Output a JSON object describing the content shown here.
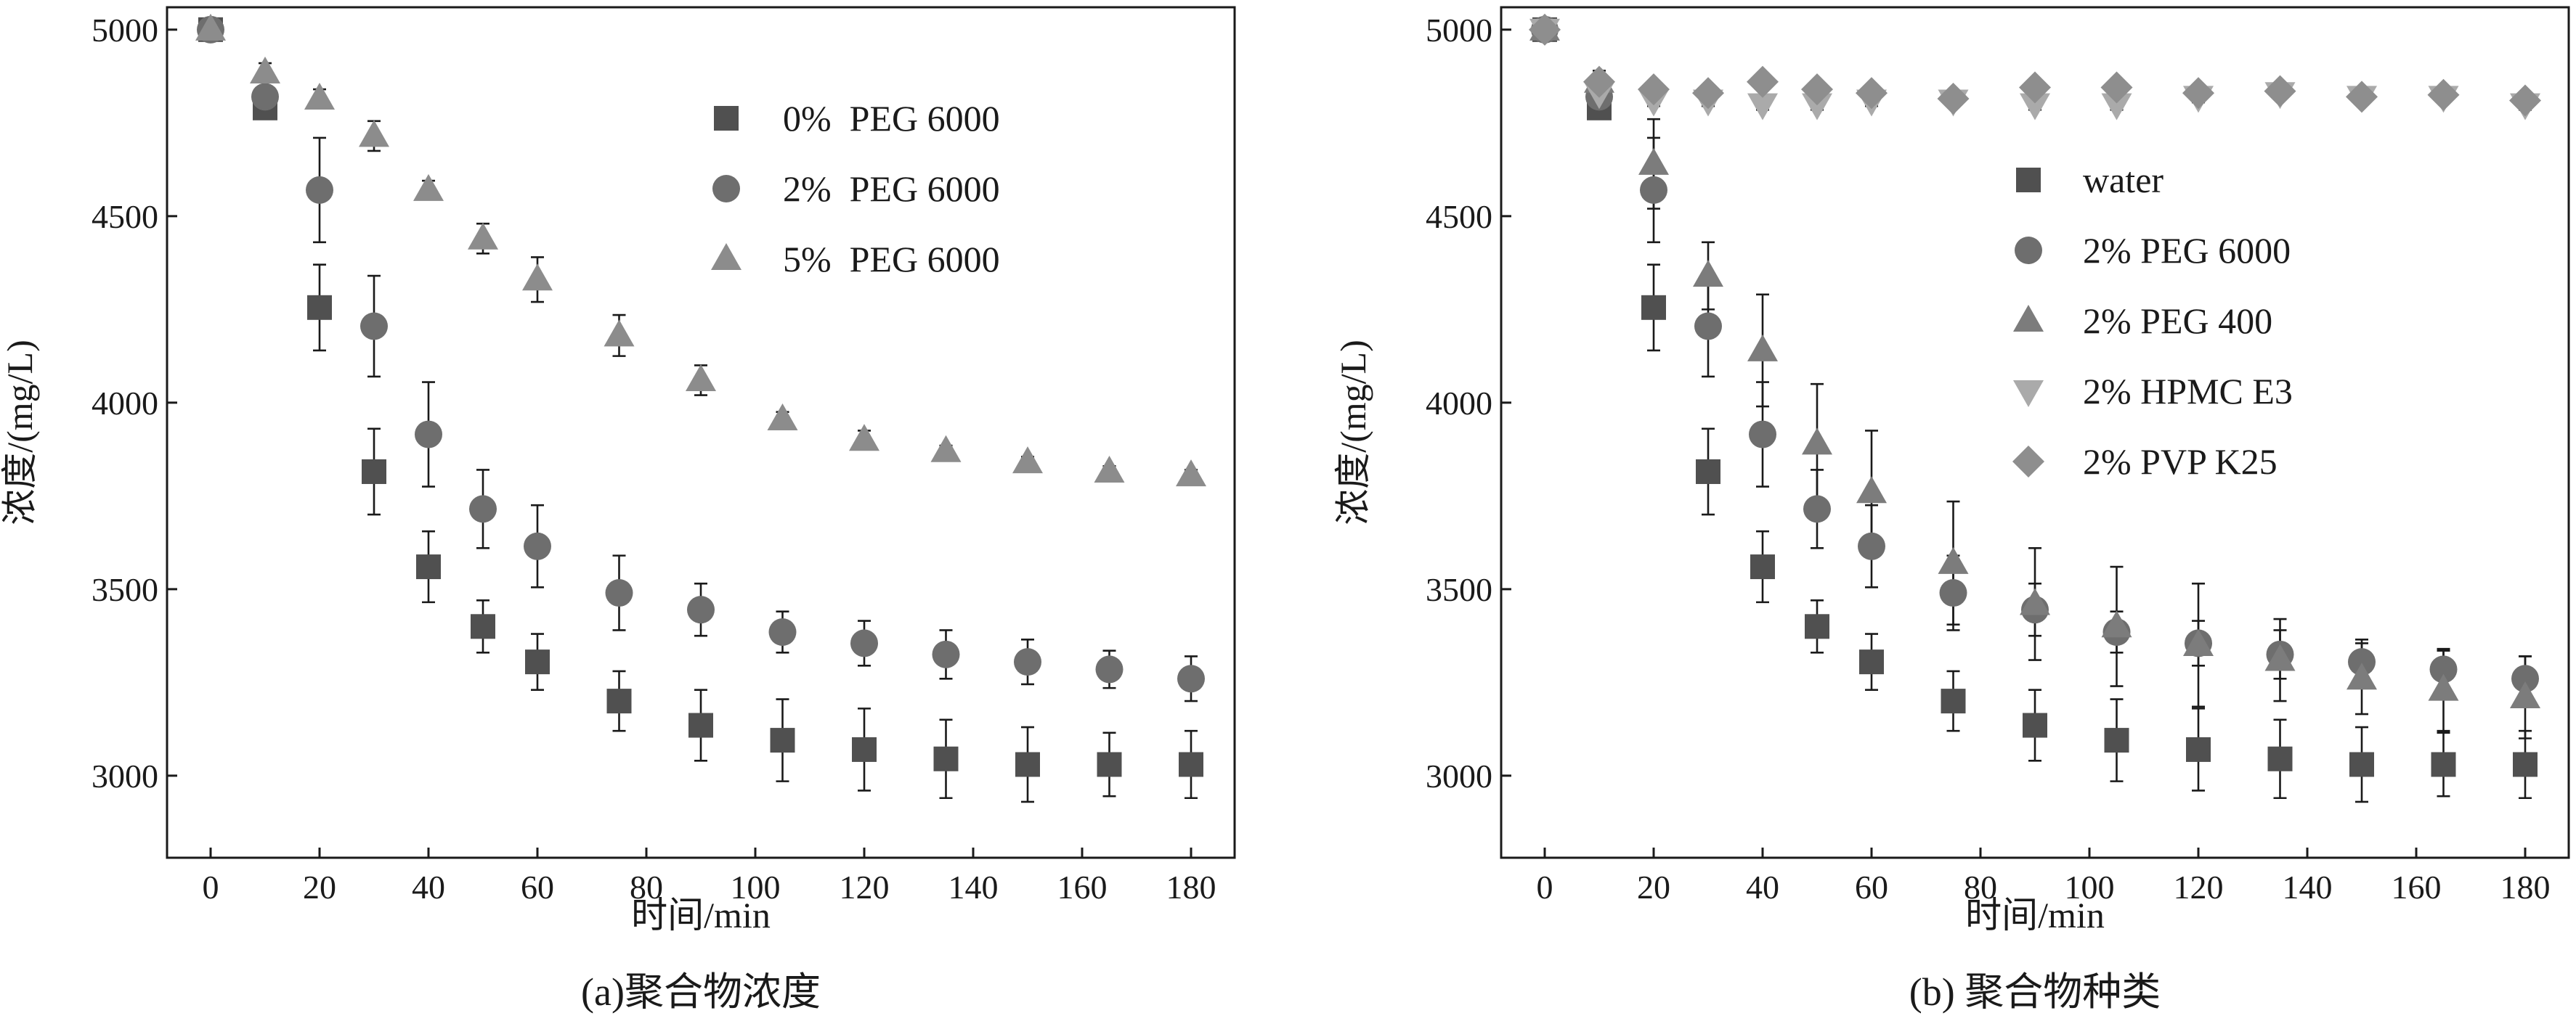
{
  "chart_data": [
    {
      "type": "scatter",
      "caption": "(a)聚合物浓度",
      "xlabel": "时间/min",
      "ylabel": "浓度/(mg/L)",
      "xlim": [
        -8,
        188
      ],
      "ylim": [
        2780,
        5060
      ],
      "xticks": [
        0,
        20,
        40,
        60,
        80,
        100,
        120,
        140,
        160,
        180
      ],
      "yticks": [
        3000,
        3500,
        4000,
        4500,
        5000
      ],
      "x": [
        0,
        10,
        20,
        30,
        40,
        50,
        60,
        75,
        90,
        105,
        120,
        135,
        150,
        165,
        180
      ],
      "legend_position": "upper-right",
      "series": [
        {
          "name": "0%  PEG 6000",
          "marker": "square",
          "color": "#505050",
          "values": [
            5000,
            4790,
            4255,
            3815,
            3560,
            3400,
            3305,
            3200,
            3135,
            3095,
            3070,
            3045,
            3030,
            3030,
            3030
          ],
          "errors": [
            15,
            20,
            115,
            115,
            95,
            70,
            75,
            80,
            95,
            110,
            110,
            105,
            100,
            85,
            90
          ]
        },
        {
          "name": "2%  PEG 6000",
          "marker": "circle",
          "color": "#6e6e6e",
          "values": [
            5000,
            4820,
            4570,
            4205,
            3915,
            3715,
            3615,
            3490,
            3445,
            3385,
            3355,
            3325,
            3305,
            3285,
            3260
          ],
          "errors": [
            15,
            25,
            140,
            135,
            140,
            105,
            110,
            100,
            70,
            55,
            60,
            65,
            60,
            50,
            60
          ]
        },
        {
          "name": "5%  PEG 6000",
          "marker": "triangle",
          "color": "#8c8c8c",
          "values": [
            5000,
            4885,
            4815,
            4715,
            4570,
            4440,
            4330,
            4180,
            4060,
            3955,
            3900,
            3870,
            3840,
            3815,
            3805
          ],
          "errors": [
            10,
            25,
            25,
            40,
            25,
            40,
            60,
            55,
            40,
            20,
            25,
            15,
            15,
            15,
            15
          ]
        }
      ]
    },
    {
      "type": "scatter",
      "caption": "(b) 聚合物种类",
      "xlabel": "时间/min",
      "ylabel": "浓度/(mg/L)",
      "xlim": [
        -8,
        188
      ],
      "ylim": [
        2780,
        5060
      ],
      "xticks": [
        0,
        20,
        40,
        60,
        80,
        100,
        120,
        140,
        160,
        180
      ],
      "yticks": [
        3000,
        3500,
        4000,
        4500,
        5000
      ],
      "x": [
        0,
        10,
        20,
        30,
        40,
        50,
        60,
        75,
        90,
        105,
        120,
        135,
        150,
        165,
        180
      ],
      "legend_position": "center-right",
      "series": [
        {
          "name": "water",
          "marker": "square",
          "color": "#505050",
          "values": [
            5000,
            4790,
            4255,
            3815,
            3560,
            3400,
            3305,
            3200,
            3135,
            3095,
            3070,
            3045,
            3030,
            3030,
            3030
          ],
          "errors": [
            15,
            20,
            115,
            115,
            95,
            70,
            75,
            80,
            95,
            110,
            110,
            105,
            100,
            85,
            90
          ]
        },
        {
          "name": "2% PEG 6000",
          "marker": "circle",
          "color": "#6e6e6e",
          "values": [
            5000,
            4820,
            4570,
            4205,
            3915,
            3715,
            3615,
            3490,
            3445,
            3385,
            3355,
            3325,
            3305,
            3285,
            3260
          ],
          "errors": [
            15,
            25,
            140,
            135,
            140,
            105,
            110,
            100,
            70,
            55,
            60,
            65,
            60,
            50,
            60
          ]
        },
        {
          "name": "2% PEG 400",
          "marker": "triangle",
          "color": "#7c7c7c",
          "values": [
            5000,
            4860,
            4640,
            4340,
            4140,
            3890,
            3760,
            3570,
            3460,
            3400,
            3350,
            3310,
            3260,
            3230,
            3210
          ],
          "errors": [
            10,
            30,
            120,
            90,
            150,
            160,
            165,
            165,
            150,
            160,
            165,
            110,
            95,
            110,
            110
          ]
        },
        {
          "name": "2% HPMC E3",
          "marker": "triangle-down",
          "color": "#aaaaaa",
          "values": [
            5000,
            4830,
            4810,
            4810,
            4800,
            4800,
            4810,
            4810,
            4800,
            4800,
            4820,
            4830,
            4820,
            4820,
            4800
          ],
          "errors": [
            10,
            15,
            15,
            15,
            15,
            15,
            15,
            15,
            15,
            15,
            15,
            15,
            15,
            15,
            15
          ]
        },
        {
          "name": "2% PVP K25",
          "marker": "diamond",
          "color": "#8e8e8e",
          "values": [
            5000,
            4860,
            4840,
            4830,
            4860,
            4840,
            4830,
            4815,
            4845,
            4845,
            4830,
            4835,
            4820,
            4825,
            4810
          ],
          "errors": [
            10,
            20,
            15,
            15,
            15,
            15,
            15,
            15,
            15,
            15,
            15,
            15,
            15,
            15,
            15
          ]
        }
      ]
    }
  ]
}
